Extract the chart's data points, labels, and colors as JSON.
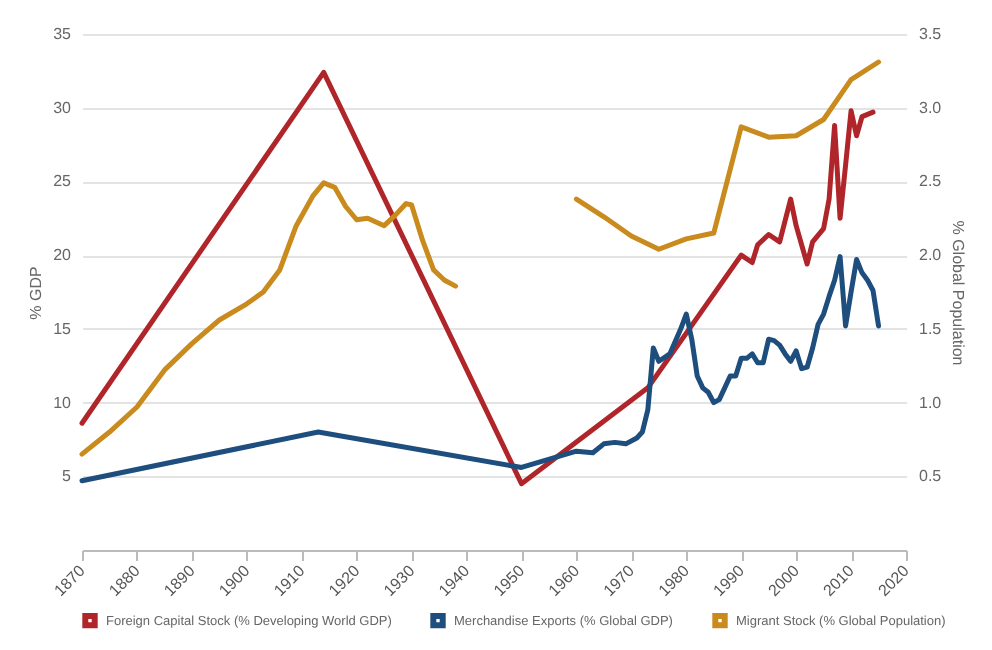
{
  "chart_data": {
    "type": "line",
    "ylabel": "% GDP",
    "y2label": "% Global Population",
    "xlim": [
      1870,
      2020
    ],
    "xticks": [
      1870,
      1880,
      1890,
      1900,
      1910,
      1920,
      1930,
      1940,
      1950,
      1960,
      1970,
      1980,
      1990,
      2000,
      2010,
      2020
    ],
    "ylim": [
      0,
      35
    ],
    "yticks": [
      5,
      10,
      15,
      20,
      25,
      30,
      35
    ],
    "y2lim": [
      0,
      3.5
    ],
    "y2ticks": [
      {
        "value": 0.5,
        "label": "0.5"
      },
      {
        "value": 1,
        "label": "1.0"
      },
      {
        "value": 1.5,
        "label": "1.5"
      },
      {
        "value": 2,
        "label": "2.0"
      },
      {
        "value": 2.5,
        "label": "2.5"
      },
      {
        "value": 3,
        "label": "3.0"
      },
      {
        "value": 3.5,
        "label": "3.5"
      }
    ],
    "grid": "y",
    "legend": "bottom",
    "series": [
      {
        "name": "Foreign Capital Stock (% Developing World GDP)",
        "color": "#b0252a",
        "x": [
          1870,
          1914,
          1950,
          1973,
          1990,
          1992,
          1993,
          1995,
          1997,
          1999,
          2000,
          2002,
          2003,
          2005,
          2006,
          2007,
          2008,
          2009,
          2010,
          2011,
          2012,
          2014
        ],
        "values": [
          8.6,
          32.4,
          4.5,
          11.0,
          20.0,
          19.5,
          20.7,
          21.4,
          20.9,
          23.8,
          22.0,
          19.4,
          20.9,
          21.8,
          23.8,
          28.8,
          22.5,
          26.1,
          29.8,
          28.1,
          29.4,
          29.7
        ]
      },
      {
        "name": "Merchandise Exports (% Global GDP)",
        "color": "#1d4e7e",
        "x": [
          1870,
          1913,
          1950,
          1960,
          1963,
          1965,
          1967,
          1969,
          1971,
          1972,
          1973,
          1974,
          1975,
          1977,
          1979,
          1980,
          1981,
          1982,
          1983,
          1984,
          1985,
          1986,
          1987,
          1988,
          1989,
          1990,
          1991,
          1992,
          1993,
          1994,
          1995,
          1996,
          1997,
          1998,
          1999,
          2000,
          2001,
          2002,
          2003,
          2004,
          2005,
          2006,
          2007,
          2008,
          2009,
          2010,
          2011,
          2012,
          2013,
          2014,
          2015
        ],
        "values": [
          4.7,
          8.0,
          5.6,
          6.7,
          6.6,
          7.2,
          7.3,
          7.2,
          7.6,
          8.0,
          9.5,
          13.7,
          12.8,
          13.3,
          15.0,
          16.0,
          14.3,
          11.8,
          11.0,
          10.7,
          10.0,
          10.2,
          11.0,
          11.8,
          11.8,
          13.0,
          13.0,
          13.3,
          12.7,
          12.7,
          14.3,
          14.2,
          13.9,
          13.3,
          12.8,
          13.5,
          12.3,
          12.4,
          13.7,
          15.3,
          16.0,
          17.2,
          18.3,
          19.9,
          15.2,
          17.5,
          19.7,
          18.8,
          18.3,
          17.6,
          15.2
        ]
      },
      {
        "name": "Migrant Stock (% Global Population)",
        "color": "#c98a1e",
        "axis": "y2",
        "x": [
          1870,
          1875,
          1880,
          1885,
          1890,
          1895,
          1900,
          1903,
          1906,
          1909,
          1912,
          1914,
          1916,
          1918,
          1920,
          1922,
          1925,
          1927,
          1929,
          1930,
          1932,
          1934,
          1936,
          1938,
          1950,
          1960,
          1965,
          1970,
          1975,
          1980,
          1985,
          1990,
          1995,
          2000,
          2005,
          2010,
          2015
        ],
        "values": [
          0.65,
          0.8,
          0.97,
          1.22,
          1.4,
          1.56,
          1.67,
          1.75,
          1.9,
          2.2,
          2.4,
          2.49,
          2.46,
          2.33,
          2.24,
          2.25,
          2.2,
          2.27,
          2.35,
          2.34,
          2.1,
          1.9,
          1.83,
          1.79,
          null,
          2.38,
          2.26,
          2.13,
          2.04,
          2.11,
          2.15,
          2.87,
          2.8,
          2.81,
          2.92,
          3.19,
          3.31
        ]
      }
    ]
  }
}
